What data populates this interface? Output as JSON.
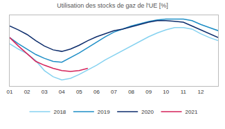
{
  "chart_data": {
    "type": "line",
    "title": "Utilisation des stocks de gaz de l'UE [%]",
    "x": [
      1,
      1.5,
      2,
      2.5,
      3,
      3.5,
      4,
      4.5,
      5,
      5.5,
      6,
      6.5,
      7,
      7.5,
      8,
      8.5,
      9,
      9.5,
      10,
      10.5,
      11,
      11.5,
      12,
      12.5,
      13
    ],
    "series": [
      {
        "name": "2018",
        "color": "#86d2f0",
        "values": [
          65,
          58,
          52,
          43,
          30,
          22,
          18,
          20,
          25,
          31,
          37,
          44,
          50,
          56,
          62,
          68,
          74,
          79,
          83,
          86,
          86,
          84,
          78,
          73,
          69
        ]
      },
      {
        "name": "2019",
        "color": "#1e8ec6",
        "values": [
          73,
          65,
          58,
          51,
          46,
          42,
          41,
          47,
          53,
          60,
          67,
          74,
          80,
          84,
          88,
          91,
          94,
          96,
          97,
          97,
          97,
          95,
          90,
          86,
          82
        ]
      },
      {
        "name": "2020",
        "color": "#0d2d6c",
        "values": [
          88,
          83,
          77,
          69,
          62,
          57,
          55,
          58,
          63,
          69,
          74,
          78,
          82,
          84,
          87,
          90,
          93,
          95,
          95,
          94,
          93,
          88,
          83,
          78,
          73
        ]
      },
      {
        "name": "2021",
        "color": "#d42159",
        "values": [
          73,
          62,
          52,
          42,
          37,
          33,
          30,
          29,
          30,
          33,
          null,
          null,
          null,
          null,
          null,
          null,
          null,
          null,
          null,
          null,
          null,
          null,
          null,
          null,
          null
        ]
      }
    ],
    "xlim": [
      1,
      13
    ],
    "xticks": [
      {
        "value": 1,
        "label": "01"
      },
      {
        "value": 2,
        "label": "02"
      },
      {
        "value": 3,
        "label": "03"
      },
      {
        "value": 4,
        "label": "04"
      },
      {
        "value": 5,
        "label": "05"
      },
      {
        "value": 6,
        "label": "06"
      },
      {
        "value": 7,
        "label": "07"
      },
      {
        "value": 8,
        "label": "08"
      },
      {
        "value": 9,
        "label": "09"
      },
      {
        "value": 10,
        "label": "10"
      },
      {
        "value": 11,
        "label": "11"
      },
      {
        "value": 12,
        "label": "12"
      }
    ],
    "ylim": [
      10,
      102
    ],
    "yticks": [],
    "tick_labels": "x",
    "grid": false,
    "legend": "bottom"
  }
}
